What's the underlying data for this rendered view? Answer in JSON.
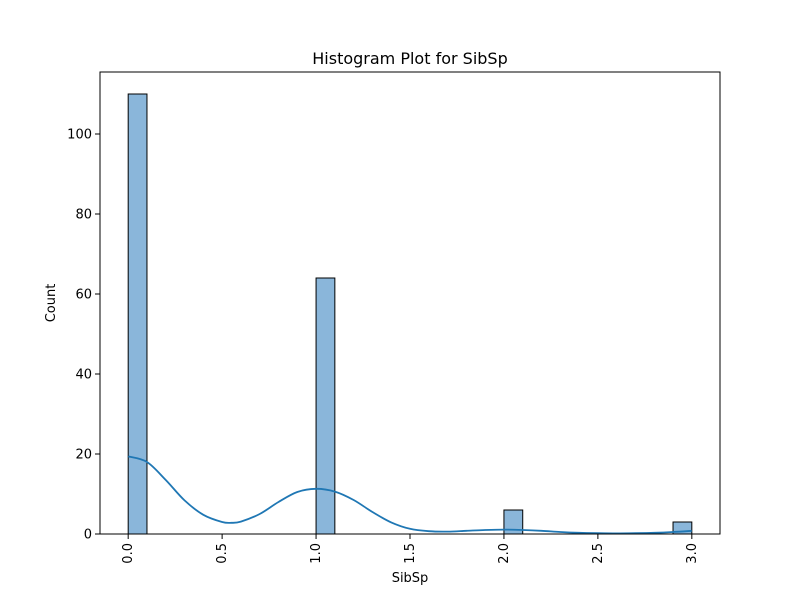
{
  "chart_data": {
    "type": "bar",
    "title": "Histogram Plot for SibSp",
    "xlabel": "SibSp",
    "ylabel": "Count",
    "xlim": [
      -0.15,
      3.15
    ],
    "ylim": [
      0,
      115.5
    ],
    "x_ticks": [
      "0.0",
      "0.5",
      "1.0",
      "1.5",
      "2.0",
      "2.5",
      "3.0"
    ],
    "x_tick_values": [
      0.0,
      0.5,
      1.0,
      1.5,
      2.0,
      2.5,
      3.0
    ],
    "y_ticks": [
      "0",
      "20",
      "40",
      "60",
      "80",
      "100"
    ],
    "y_tick_values": [
      0,
      20,
      40,
      60,
      80,
      100
    ],
    "bin_width": 0.1,
    "bins": [
      {
        "x": 0.0,
        "count": 110
      },
      {
        "x": 1.0,
        "count": 64
      },
      {
        "x": 2.0,
        "count": 6
      },
      {
        "x": 2.9,
        "count": 3
      }
    ],
    "kde": {
      "x": [
        0.0,
        0.1,
        0.2,
        0.3,
        0.4,
        0.5,
        0.55,
        0.6,
        0.7,
        0.8,
        0.9,
        1.0,
        1.1,
        1.2,
        1.3,
        1.4,
        1.5,
        1.6,
        1.7,
        1.8,
        1.9,
        2.0,
        2.1,
        2.2,
        2.3,
        2.4,
        2.5,
        2.6,
        2.7,
        2.8,
        2.9,
        3.0
      ],
      "y": [
        19.4,
        18.0,
        13.5,
        8.4,
        4.8,
        3.0,
        2.8,
        3.1,
        5.0,
        8.0,
        10.5,
        11.3,
        10.6,
        8.5,
        5.5,
        2.9,
        1.3,
        0.7,
        0.6,
        0.8,
        1.0,
        1.1,
        1.0,
        0.8,
        0.5,
        0.3,
        0.2,
        0.15,
        0.2,
        0.3,
        0.5,
        0.8
      ]
    },
    "colors": {
      "bar_fill": "#8ab6da",
      "bar_edge": "#000000",
      "kde_line": "#1f77b4"
    },
    "grid": false,
    "legend": "none"
  }
}
